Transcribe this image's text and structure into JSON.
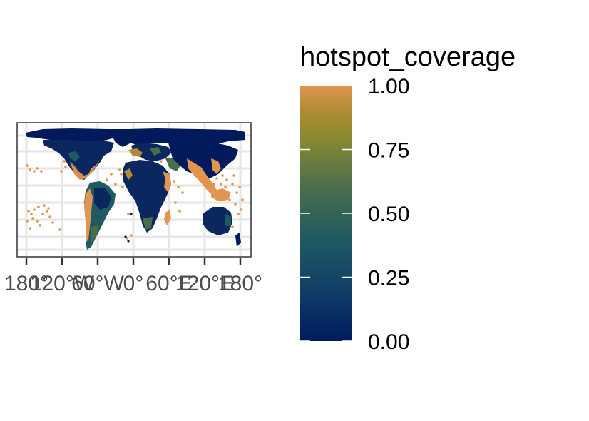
{
  "map": {
    "x_ticks": [
      "180°",
      "120°W",
      "60°W",
      "0°",
      "60°E",
      "120°E",
      "180°"
    ],
    "x_range": [
      -180,
      180
    ],
    "y_range": [
      -60,
      85
    ],
    "grid": true,
    "colors": {
      "panel_border": "#333333",
      "grid": "#e6e6e6",
      "tick_text": "#4d4d4d"
    }
  },
  "legend": {
    "title": "hotspot_coverage",
    "tick_labels": [
      "1.00",
      "0.75",
      "0.50",
      "0.25",
      "0.00"
    ],
    "range": [
      0,
      1
    ],
    "placement": "right",
    "colors": [
      "#001a5c",
      "#0e3a66",
      "#1f5a63",
      "#4a6e4c",
      "#8a8a30",
      "#b08b35",
      "#e09550"
    ]
  }
}
